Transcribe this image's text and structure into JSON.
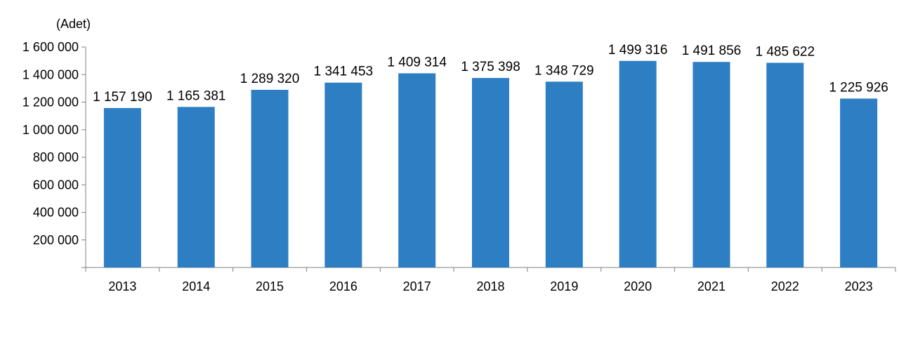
{
  "chart_data": {
    "type": "bar",
    "unit_label": "(Adet)",
    "categories": [
      "2013",
      "2014",
      "2015",
      "2016",
      "2017",
      "2018",
      "2019",
      "2020",
      "2021",
      "2022",
      "2023"
    ],
    "values": [
      1157190,
      1165381,
      1289320,
      1341453,
      1409314,
      1375398,
      1348729,
      1499316,
      1491856,
      1485622,
      1225926
    ],
    "value_labels": [
      "1 157 190",
      "1 165 381",
      "1 289 320",
      "1 341 453",
      "1 409 314",
      "1 375 398",
      "1 348 729",
      "1 499 316",
      "1 491 856",
      "1 485 622",
      "1 225 926"
    ],
    "ylim": [
      0,
      1600000
    ],
    "yticks": [
      200000,
      400000,
      600000,
      800000,
      1000000,
      1200000,
      1400000,
      1600000
    ],
    "ytick_labels": [
      "200 000",
      "400 000",
      "600 000",
      "800 000",
      "1 000 000",
      "1 200 000",
      "1 400 000",
      "1 600 000"
    ],
    "grid": false,
    "legend": "none",
    "bar_color": "#2E7EC3",
    "axis_color": "#808080"
  }
}
